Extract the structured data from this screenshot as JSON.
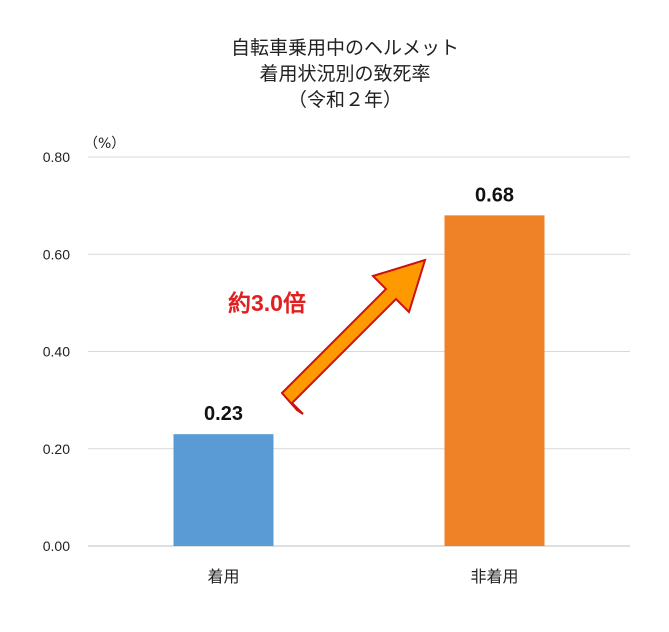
{
  "chart_data": {
    "type": "bar",
    "title_lines": [
      "自転車乗用中のヘルメット",
      "着用状況別の致死率",
      "（令和２年）"
    ],
    "y_unit": "（%）",
    "categories": [
      "着用",
      "非着用"
    ],
    "values": [
      0.23,
      0.68
    ],
    "data_labels": [
      "0.23",
      "0.68"
    ],
    "bar_colors": [
      "#5b9bd5",
      "#ef8126"
    ],
    "ylim": [
      0,
      0.8
    ],
    "yticks": [
      "0.00",
      "0.20",
      "0.40",
      "0.60",
      "0.80"
    ],
    "grid": true,
    "legend": "none",
    "annotation": {
      "text": "約3.0倍",
      "color": "#e02020",
      "arrow_fill": "#ff9900",
      "arrow_stroke": "#cc1111"
    }
  }
}
